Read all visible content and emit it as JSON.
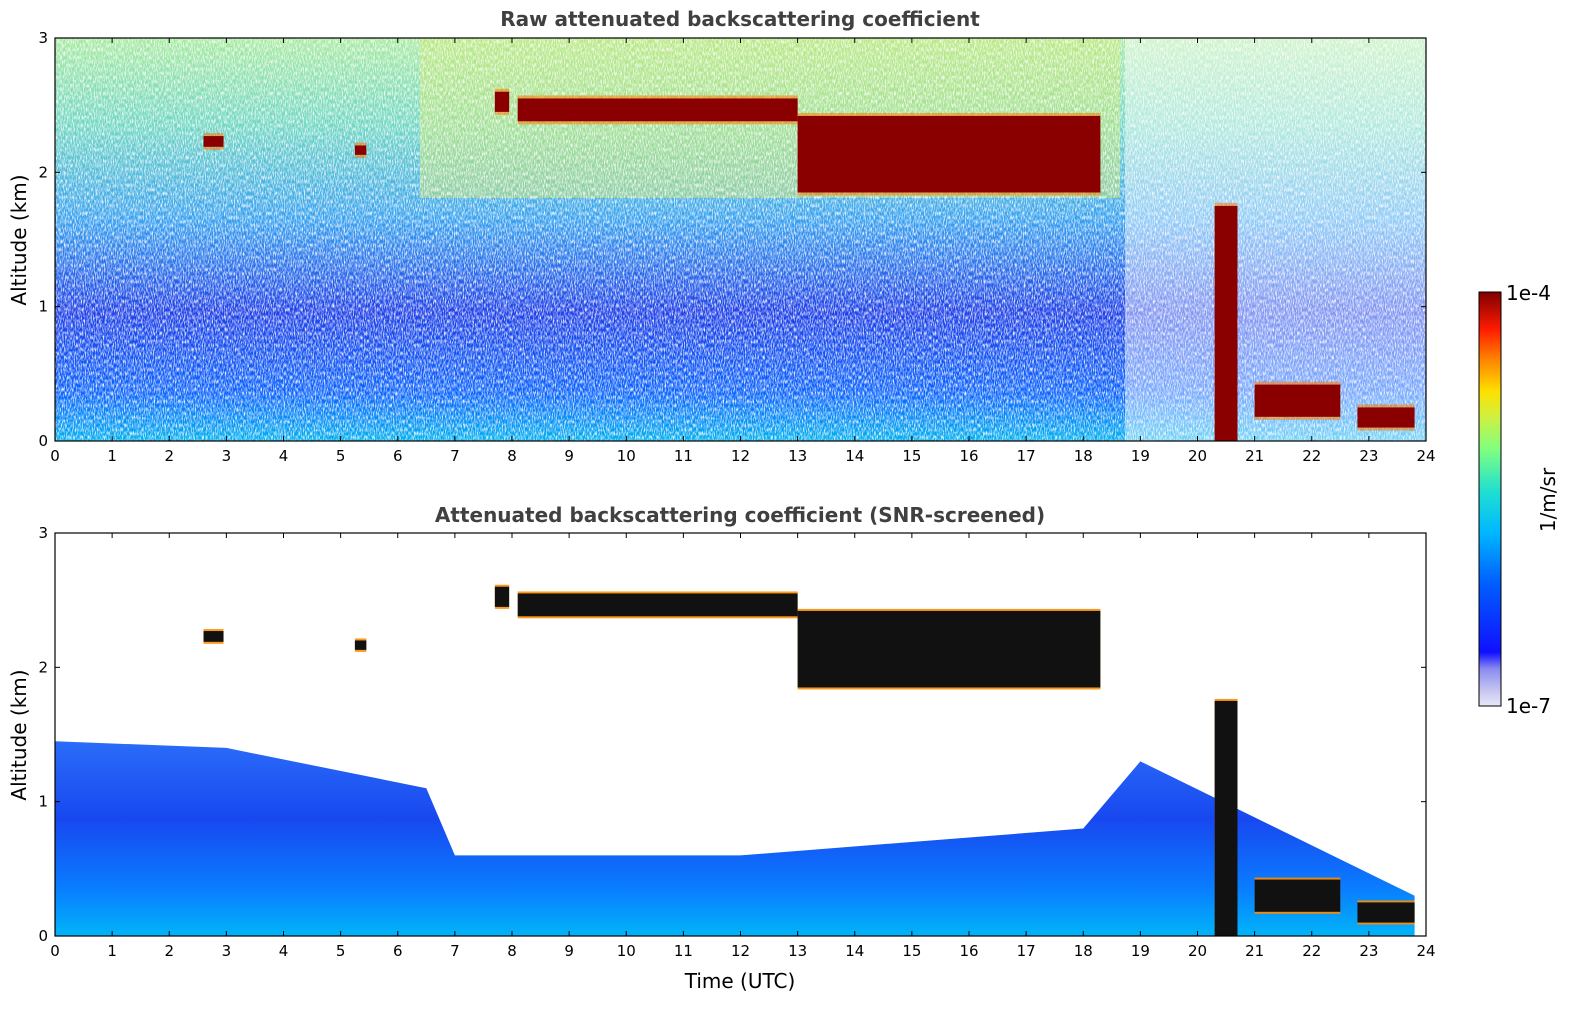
{
  "chart_data": [
    {
      "type": "heatmap",
      "title": "Raw attenuated backscattering coefficient",
      "xlabel": "",
      "ylabel": "Altitude (km)",
      "xlim": [
        0,
        24
      ],
      "ylim": [
        0,
        3
      ],
      "xticks": [
        "0",
        "1",
        "2",
        "3",
        "4",
        "5",
        "6",
        "7",
        "8",
        "9",
        "10",
        "11",
        "12",
        "13",
        "14",
        "15",
        "16",
        "17",
        "18",
        "19",
        "20",
        "21",
        "22",
        "23",
        "24"
      ],
      "yticks": [
        "0",
        "1",
        "2",
        "3"
      ],
      "grid": false,
      "cloud_layers": [
        {
          "t": [
            2.6,
            2.95
          ],
          "alt": [
            2.19,
            2.27
          ]
        },
        {
          "t": [
            5.25,
            5.45
          ],
          "alt": [
            2.13,
            2.2
          ]
        },
        {
          "t": [
            7.7,
            7.95
          ],
          "alt": [
            2.45,
            2.6
          ]
        },
        {
          "t": [
            8.1,
            13.0
          ],
          "alt": [
            2.38,
            2.55
          ]
        },
        {
          "t": [
            13.0,
            18.3
          ],
          "alt": [
            1.85,
            2.42
          ]
        },
        {
          "t": [
            20.3,
            20.7
          ],
          "alt": [
            0.0,
            1.75
          ]
        },
        {
          "t": [
            21.0,
            22.5
          ],
          "alt": [
            0.18,
            0.42
          ]
        },
        {
          "t": [
            22.8,
            23.8
          ],
          "alt": [
            0.1,
            0.25
          ]
        }
      ]
    },
    {
      "type": "heatmap",
      "title": "Attenuated backscattering coefficient (SNR-screened)",
      "xlabel": "Time (UTC)",
      "ylabel": "Altitude (km)",
      "xlim": [
        0,
        24
      ],
      "ylim": [
        0,
        3
      ],
      "xticks": [
        "0",
        "1",
        "2",
        "3",
        "4",
        "5",
        "6",
        "7",
        "8",
        "9",
        "10",
        "11",
        "12",
        "13",
        "14",
        "15",
        "16",
        "17",
        "18",
        "19",
        "20",
        "21",
        "22",
        "23",
        "24"
      ],
      "yticks": [
        "0",
        "1",
        "2",
        "3"
      ],
      "grid": false,
      "boundary_layer_top_km": [
        {
          "t": 0,
          "alt": 1.45
        },
        {
          "t": 3,
          "alt": 1.4
        },
        {
          "t": 6.5,
          "alt": 1.1
        },
        {
          "t": 7,
          "alt": 0.6
        },
        {
          "t": 12,
          "alt": 0.6
        },
        {
          "t": 18,
          "alt": 0.8
        },
        {
          "t": 19,
          "alt": 1.3
        },
        {
          "t": 23.8,
          "alt": 0.3
        }
      ]
    }
  ],
  "colorbar": {
    "label": "1/m/sr",
    "max_label": "1e-4",
    "min_label": "1e-7",
    "scale": "log",
    "range": [
      1e-07,
      0.0001
    ],
    "colormap": "jet",
    "low_color": "#e8e8f8",
    "high_color": "#7f0000"
  }
}
